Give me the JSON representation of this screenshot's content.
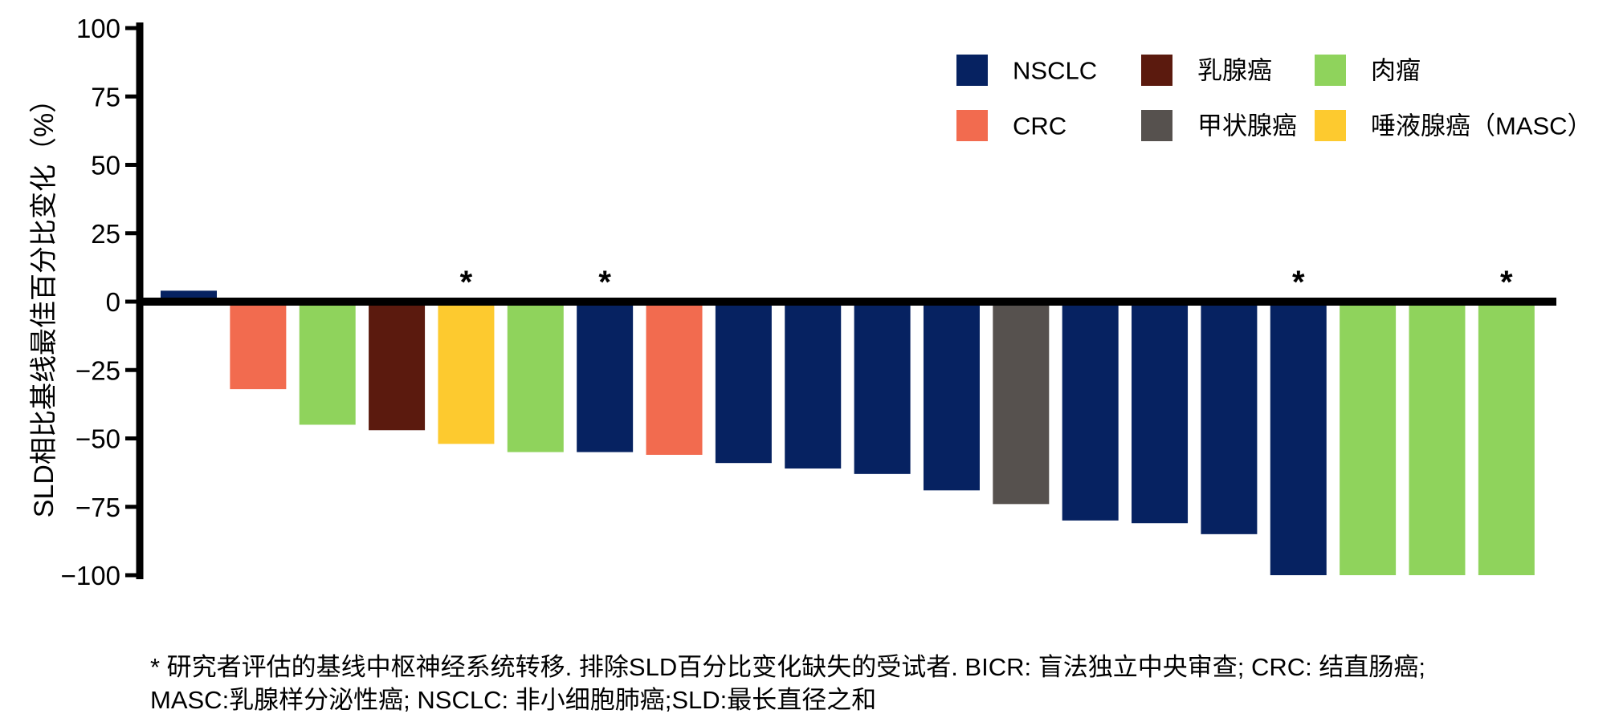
{
  "chart_data": {
    "type": "bar",
    "ylabel": "SLD相比基线最佳百分比变化（%）",
    "ylim": [
      -100,
      100
    ],
    "yticks": [
      100,
      75,
      50,
      25,
      0,
      -25,
      -50,
      -75,
      -100
    ],
    "ytick_labels": [
      "100",
      "75",
      "50",
      "25",
      "0",
      "−25",
      "−50",
      "−75",
      "−100"
    ],
    "grid": false,
    "legend_position": "top-right",
    "series": [
      {
        "name": "NSCLC",
        "color": "#062261"
      },
      {
        "name": "乳腺癌",
        "color": "#5b1a0e"
      },
      {
        "name": "肉瘤",
        "color": "#8fd35c"
      },
      {
        "name": "CRC",
        "color": "#f26b4f"
      },
      {
        "name": "甲状腺癌",
        "color": "#56514e"
      },
      {
        "name": "唾液腺癌（MASC）",
        "color": "#fdca2f"
      }
    ],
    "bars": [
      {
        "value": 4,
        "series": 0
      },
      {
        "value": -32,
        "series": 3
      },
      {
        "value": -45,
        "series": 2
      },
      {
        "value": -47,
        "series": 1
      },
      {
        "value": -52,
        "series": 5,
        "marker": "*"
      },
      {
        "value": -55,
        "series": 2
      },
      {
        "value": -55,
        "series": 0,
        "marker": "*"
      },
      {
        "value": -56,
        "series": 3
      },
      {
        "value": -59,
        "series": 0
      },
      {
        "value": -61,
        "series": 0
      },
      {
        "value": -63,
        "series": 0
      },
      {
        "value": -69,
        "series": 0
      },
      {
        "value": -74,
        "series": 4
      },
      {
        "value": -80,
        "series": 0
      },
      {
        "value": -81,
        "series": 0
      },
      {
        "value": -85,
        "series": 0
      },
      {
        "value": -100,
        "series": 0,
        "marker": "*"
      },
      {
        "value": -100,
        "series": 2
      },
      {
        "value": -100,
        "series": 2
      },
      {
        "value": -100,
        "series": 2,
        "marker": "*"
      }
    ]
  },
  "footnote": [
    "* 研究者评估的基线中枢神经系统转移. 排除SLD百分比变化缺失的受试者. BICR: 盲法独立中央审查; CRC: 结直肠癌;",
    "MASC:乳腺样分泌性癌; NSCLC: 非小细胞肺癌;SLD:最长直径之和"
  ]
}
